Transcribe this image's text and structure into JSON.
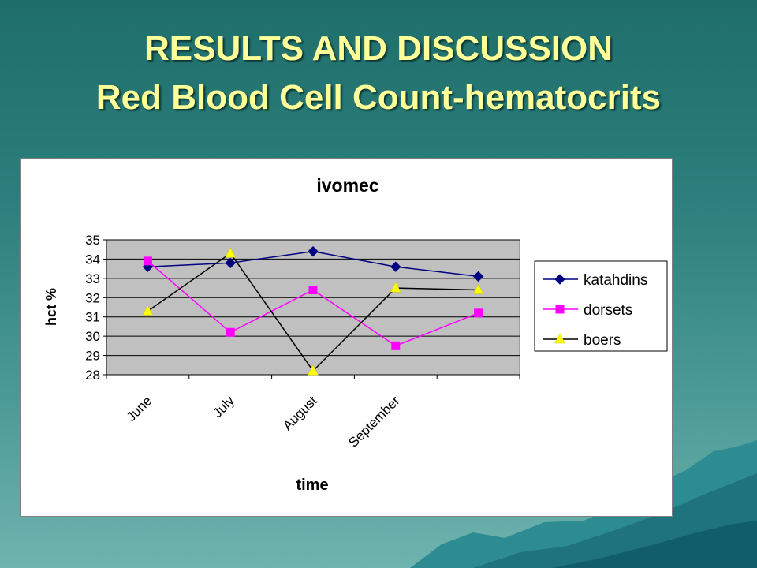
{
  "slide": {
    "title_line1": "RESULTS AND DISCUSSION",
    "title_line2": "Red Blood Cell Count-hematocrits",
    "title_color": "#ffff99"
  },
  "chart_data": {
    "type": "line",
    "title": "ivomec",
    "xlabel": "time",
    "ylabel": "hct %",
    "categories": [
      "June",
      "July",
      "August",
      "September",
      ""
    ],
    "ylim": [
      28,
      35
    ],
    "yticks": [
      28,
      29,
      30,
      31,
      32,
      33,
      34,
      35
    ],
    "grid": true,
    "plot_background": "#c0c0c0",
    "legend_position": "right",
    "series": [
      {
        "name": "katahdins",
        "values": [
          33.6,
          33.8,
          34.4,
          33.6,
          33.1
        ],
        "line_color": "#000080",
        "marker": "diamond",
        "marker_color": "#000080"
      },
      {
        "name": "dorsets",
        "values": [
          33.9,
          30.2,
          32.4,
          29.5,
          31.2
        ],
        "line_color": "#ff00ff",
        "marker": "square",
        "marker_color": "#ff00ff"
      },
      {
        "name": "boers",
        "values": [
          31.3,
          34.3,
          28.2,
          32.5,
          32.4
        ],
        "line_color": "#000000",
        "marker": "triangle",
        "marker_color": "#ffff00"
      }
    ]
  }
}
